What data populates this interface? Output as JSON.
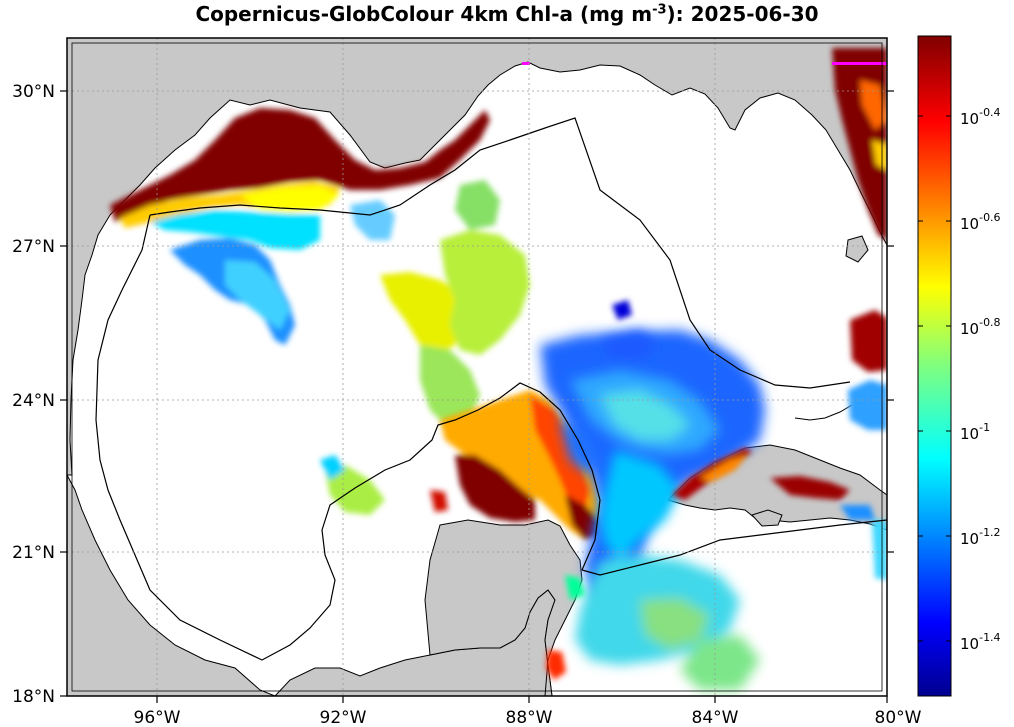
{
  "title": {
    "prefix": "Copernicus-GlobColour 4km Chl-a (mg m",
    "exponent": "-3",
    "suffix": "): 2025-06-30"
  },
  "map": {
    "lon_ticks": [
      "96°W",
      "92°W",
      "88°W",
      "84°W",
      "80°W"
    ],
    "lat_ticks": [
      "30°N",
      "27°N",
      "24°N",
      "21°N",
      "18°N"
    ],
    "colors": {
      "land": "#c8c8c8",
      "water_nodata": "#ffffff",
      "eez_line": "#000000",
      "marker": "#ff00ff"
    }
  },
  "colorbar": {
    "labels": [
      {
        "base": "10",
        "exp": "-0.4"
      },
      {
        "base": "10",
        "exp": "-0.6"
      },
      {
        "base": "10",
        "exp": "-0.8"
      },
      {
        "base": "10",
        "exp": "-1"
      },
      {
        "base": "10",
        "exp": "-1.2"
      },
      {
        "base": "10",
        "exp": "-1.4"
      }
    ],
    "colormap": "jet"
  }
}
